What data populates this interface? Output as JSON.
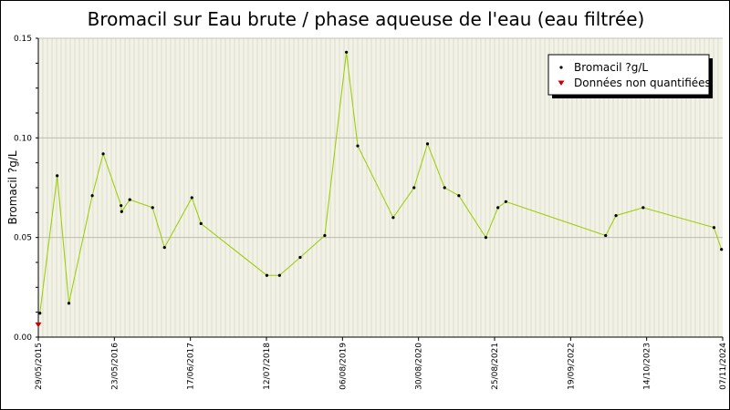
{
  "chart_data": {
    "type": "line",
    "title": "Bromacil sur Eau brute / phase aqueuse de l'eau (eau filtrée)",
    "ylabel": "Bromacil ?g/L",
    "xlabel": "",
    "ylim": [
      0,
      0.15
    ],
    "y_ticks": [
      "0.00",
      "0.05",
      "0.10",
      "0.15"
    ],
    "x_range": [
      "2015-05-29",
      "2024-11-07"
    ],
    "x_ticks": [
      "29/05/2015",
      "23/05/2016",
      "17/06/2017",
      "12/07/2018",
      "06/08/2019",
      "30/08/2020",
      "25/08/2021",
      "19/09/2022",
      "14/10/2023",
      "07/11/2024"
    ],
    "grid": true,
    "legend_position": "top-right",
    "series": [
      {
        "name": "Bromacil ?g/L",
        "color": "#99cc00",
        "marker_color": "#000000",
        "points": [
          {
            "x": "2015-06-06",
            "y": 0.012
          },
          {
            "x": "2015-09-01",
            "y": 0.081
          },
          {
            "x": "2015-10-30",
            "y": 0.017
          },
          {
            "x": "2016-02-25",
            "y": 0.071
          },
          {
            "x": "2016-04-20",
            "y": 0.092
          },
          {
            "x": "2016-07-19",
            "y": 0.066
          },
          {
            "x": "2016-07-22",
            "y": 0.063
          },
          {
            "x": "2016-09-01",
            "y": 0.069
          },
          {
            "x": "2016-12-25",
            "y": 0.065
          },
          {
            "x": "2017-02-23",
            "y": 0.045
          },
          {
            "x": "2017-07-11",
            "y": 0.07
          },
          {
            "x": "2017-08-26",
            "y": 0.057
          },
          {
            "x": "2018-07-24",
            "y": 0.031
          },
          {
            "x": "2018-09-26",
            "y": 0.031
          },
          {
            "x": "2019-01-08",
            "y": 0.04
          },
          {
            "x": "2019-05-12",
            "y": 0.051
          },
          {
            "x": "2019-08-29",
            "y": 0.143
          },
          {
            "x": "2019-10-25",
            "y": 0.096
          },
          {
            "x": "2020-04-21",
            "y": 0.06
          },
          {
            "x": "2020-08-04",
            "y": 0.075
          },
          {
            "x": "2020-10-11",
            "y": 0.097
          },
          {
            "x": "2021-01-05",
            "y": 0.075
          },
          {
            "x": "2021-03-18",
            "y": 0.071
          },
          {
            "x": "2021-08-01",
            "y": 0.05
          },
          {
            "x": "2021-10-01",
            "y": 0.065
          },
          {
            "x": "2021-11-10",
            "y": 0.068
          },
          {
            "x": "2023-03-28",
            "y": 0.051
          },
          {
            "x": "2023-05-19",
            "y": 0.061
          },
          {
            "x": "2023-10-03",
            "y": 0.065
          },
          {
            "x": "2024-09-24",
            "y": 0.055
          },
          {
            "x": "2024-11-01",
            "y": 0.044
          }
        ]
      },
      {
        "name": "Données non quantifiées",
        "color": "#cc0000",
        "marker_color": "#cc0000",
        "points": [
          {
            "x": "2015-05-29",
            "y": 0.006
          }
        ]
      }
    ]
  }
}
